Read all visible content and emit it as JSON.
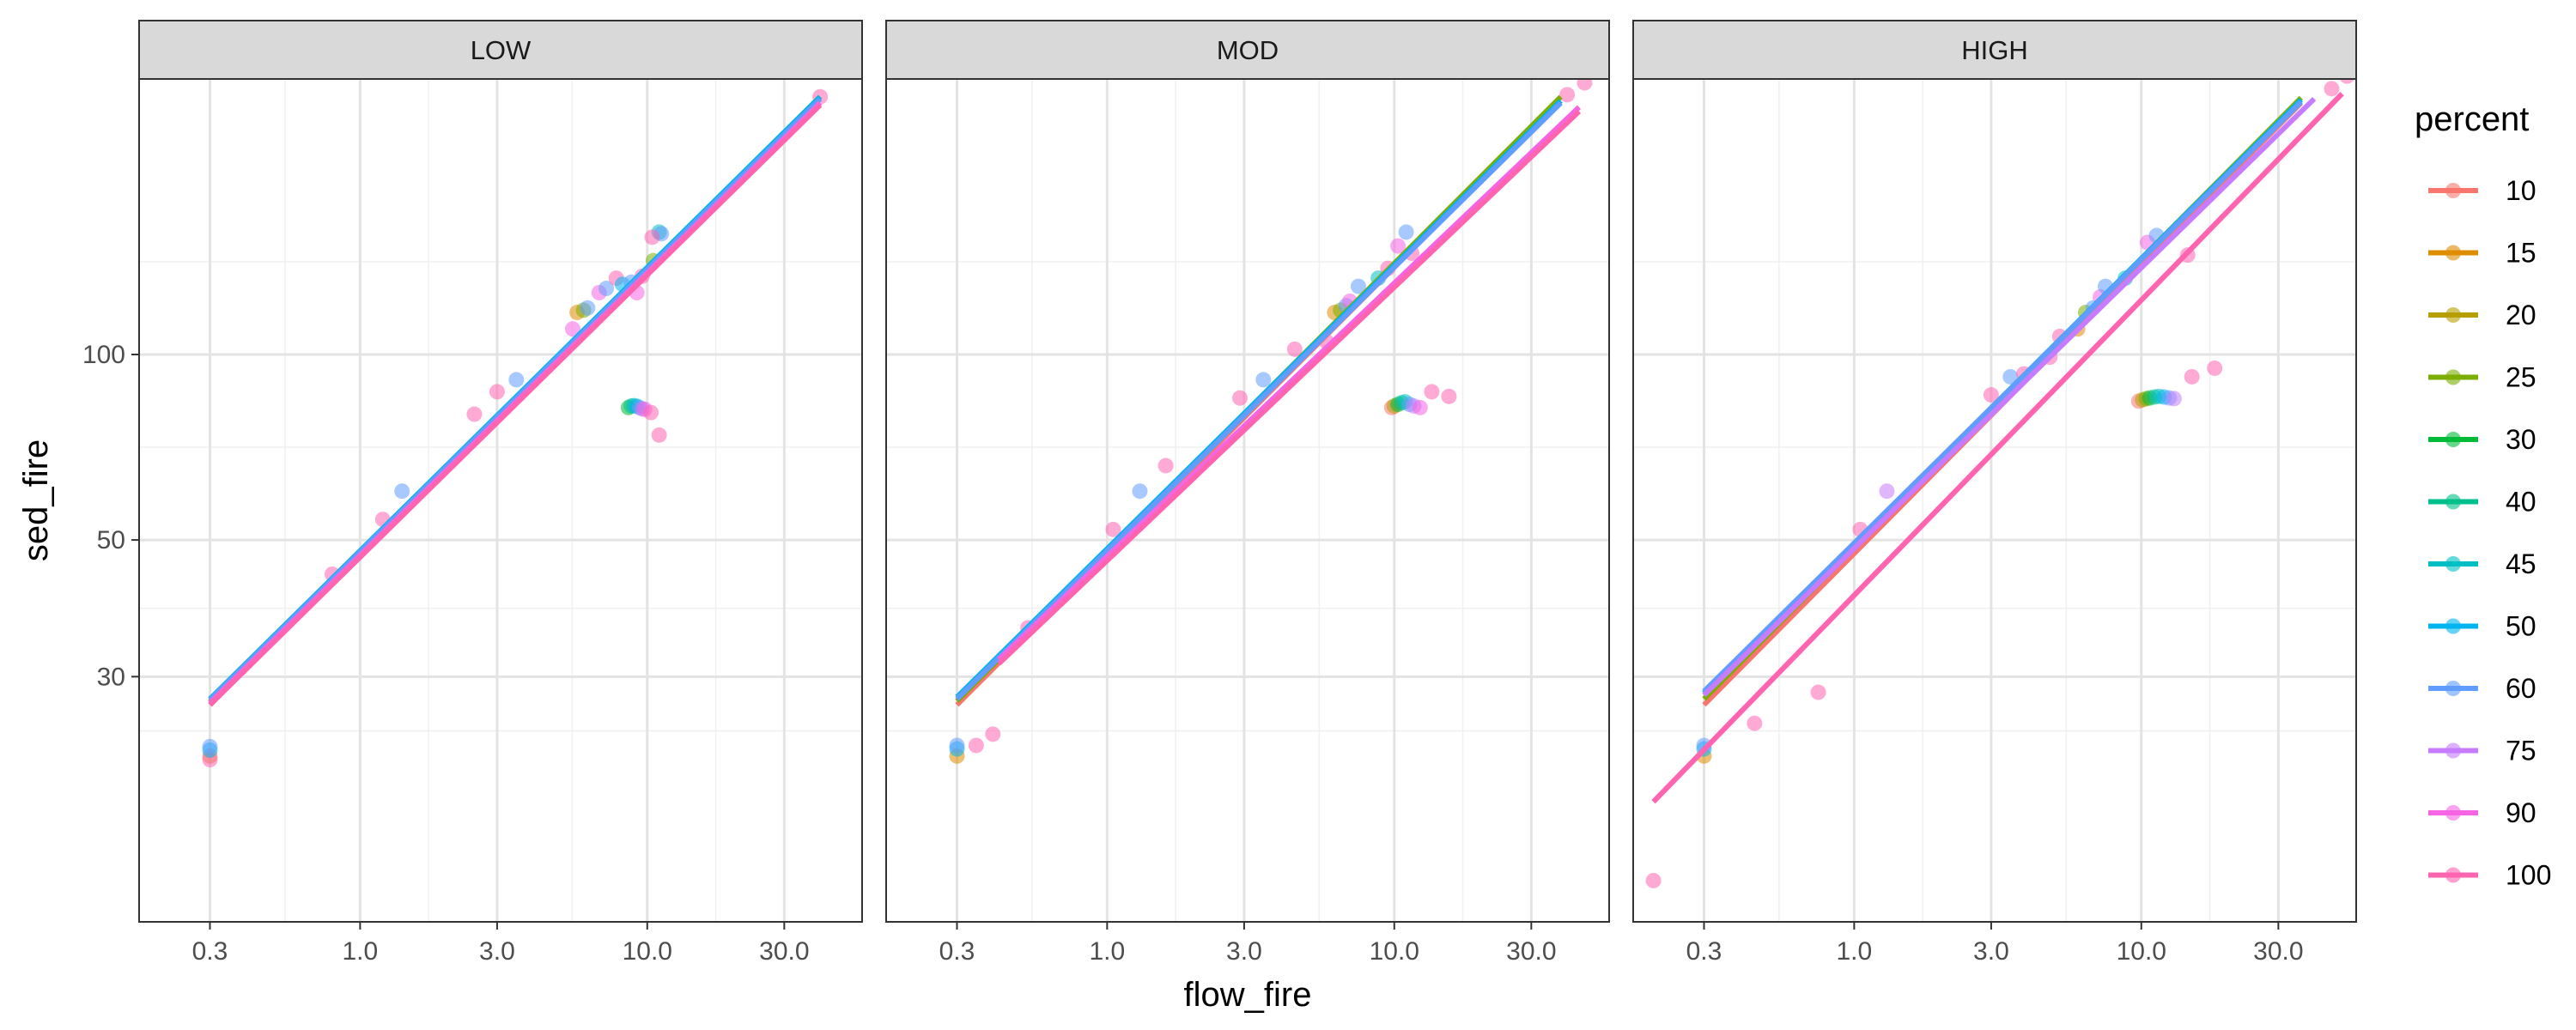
{
  "chart_data": {
    "type": "scatter",
    "xlabel": "flow_fire",
    "ylabel": "sed_fire",
    "x_scale": "log10",
    "y_scale": "log10",
    "xlim": [
      0.17,
      56
    ],
    "ylim": [
      12,
      280
    ],
    "x_ticks": [
      {
        "value": 0.3,
        "label": "0.3"
      },
      {
        "value": 1,
        "label": "1.0"
      },
      {
        "value": 3,
        "label": "3.0"
      },
      {
        "value": 10,
        "label": "10.0"
      },
      {
        "value": 30,
        "label": "30.0"
      }
    ],
    "y_ticks": [
      {
        "value": 30,
        "label": "30"
      },
      {
        "value": 50,
        "label": "50"
      },
      {
        "value": 100,
        "label": "100"
      }
    ],
    "grid": true,
    "legend": {
      "title": "percent",
      "position": "right",
      "entries": [
        {
          "label": "10",
          "color": "#F8766D"
        },
        {
          "label": "15",
          "color": "#DE8C00"
        },
        {
          "label": "20",
          "color": "#B79F00"
        },
        {
          "label": "25",
          "color": "#7CAE00"
        },
        {
          "label": "30",
          "color": "#00BA38"
        },
        {
          "label": "40",
          "color": "#00C08B"
        },
        {
          "label": "45",
          "color": "#00BFC4"
        },
        {
          "label": "50",
          "color": "#00B4F0"
        },
        {
          "label": "60",
          "color": "#619CFF"
        },
        {
          "label": "75",
          "color": "#C77CFF"
        },
        {
          "label": "90",
          "color": "#F564E3"
        },
        {
          "label": "100",
          "color": "#FF64B0"
        }
      ]
    },
    "panels": [
      {
        "label": "LOW",
        "lines": [
          {
            "color": "#F8766D",
            "x": [
              0.3,
              40
            ],
            "y": [
              27,
              260
            ]
          },
          {
            "color": "#7CAE00",
            "x": [
              0.3,
              40
            ],
            "y": [
              27.3,
              262
            ]
          },
          {
            "color": "#00B4F0",
            "x": [
              0.3,
              40
            ],
            "y": [
              27.6,
              262
            ]
          },
          {
            "color": "#619CFF",
            "x": [
              0.3,
              40
            ],
            "y": [
              27.5,
              260
            ]
          },
          {
            "color": "#F564E3",
            "x": [
              0.3,
              40
            ],
            "y": [
              27.2,
              256
            ]
          },
          {
            "color": "#FF64B0",
            "x": [
              0.3,
              40
            ],
            "y": [
              27,
              254
            ]
          }
        ],
        "points": [
          {
            "color": "#FF64B0",
            "x": 0.3,
            "y": 22
          },
          {
            "color": "#F8766D",
            "x": 0.3,
            "y": 22.3
          },
          {
            "color": "#00B4F0",
            "x": 0.3,
            "y": 22.8
          },
          {
            "color": "#619CFF",
            "x": 0.3,
            "y": 23.1
          },
          {
            "color": "#FF64B0",
            "x": 0.8,
            "y": 44
          },
          {
            "color": "#FF64B0",
            "x": 1.2,
            "y": 54
          },
          {
            "color": "#619CFF",
            "x": 1.4,
            "y": 60
          },
          {
            "color": "#FF64B0",
            "x": 2.5,
            "y": 80
          },
          {
            "color": "#FF64B0",
            "x": 3.0,
            "y": 87
          },
          {
            "color": "#619CFF",
            "x": 3.5,
            "y": 91
          },
          {
            "color": "#F564E3",
            "x": 5.5,
            "y": 110
          },
          {
            "color": "#DE8C00",
            "x": 5.7,
            "y": 117
          },
          {
            "color": "#7CAE00",
            "x": 6.0,
            "y": 118
          },
          {
            "color": "#619CFF",
            "x": 6.2,
            "y": 119
          },
          {
            "color": "#F564E3",
            "x": 6.8,
            "y": 126
          },
          {
            "color": "#619CFF",
            "x": 7.2,
            "y": 128
          },
          {
            "color": "#FF64B0",
            "x": 7.8,
            "y": 133
          },
          {
            "color": "#00B4F0",
            "x": 8.2,
            "y": 130
          },
          {
            "color": "#619CFF",
            "x": 8.8,
            "y": 131
          },
          {
            "color": "#F564E3",
            "x": 9.2,
            "y": 126
          },
          {
            "color": "#FF64B0",
            "x": 9.6,
            "y": 134
          },
          {
            "color": "#7CAE00",
            "x": 10.5,
            "y": 142
          },
          {
            "color": "#00BFC4",
            "x": 11.0,
            "y": 158
          },
          {
            "color": "#619CFF",
            "x": 11.2,
            "y": 157
          },
          {
            "color": "#FF64B0",
            "x": 10.4,
            "y": 155
          },
          {
            "color": "#00BA38",
            "x": 8.6,
            "y": 82
          },
          {
            "color": "#00C08B",
            "x": 8.8,
            "y": 82.5
          },
          {
            "color": "#00BFC4",
            "x": 9.0,
            "y": 82.6
          },
          {
            "color": "#00B4F0",
            "x": 9.2,
            "y": 82.4
          },
          {
            "color": "#619CFF",
            "x": 9.4,
            "y": 82
          },
          {
            "color": "#C77CFF",
            "x": 9.6,
            "y": 81.6
          },
          {
            "color": "#F564E3",
            "x": 9.8,
            "y": 81.5
          },
          {
            "color": "#FF64B0",
            "x": 10.3,
            "y": 80.5
          },
          {
            "color": "#FF64B0",
            "x": 11.0,
            "y": 74
          },
          {
            "color": "#FF64B0",
            "x": 40,
            "y": 262
          }
        ]
      },
      {
        "label": "MOD",
        "lines": [
          {
            "color": "#F8766D",
            "x": [
              0.3,
              38
            ],
            "y": [
              27,
              258
            ]
          },
          {
            "color": "#7CAE00",
            "x": [
              0.3,
              38
            ],
            "y": [
              27.4,
              262
            ]
          },
          {
            "color": "#00B4F0",
            "x": [
              0.3,
              38
            ],
            "y": [
              27.8,
              258
            ]
          },
          {
            "color": "#619CFF",
            "x": [
              0.3,
              38
            ],
            "y": [
              27.6,
              256
            ]
          },
          {
            "color": "#F564E3",
            "x": [
              0.42,
              44
            ],
            "y": [
              32,
              252
            ]
          },
          {
            "color": "#FF64B0",
            "x": [
              0.42,
              44
            ],
            "y": [
              31.5,
              248
            ]
          }
        ],
        "points": [
          {
            "color": "#DE8C00",
            "x": 0.3,
            "y": 22.3
          },
          {
            "color": "#00B4F0",
            "x": 0.3,
            "y": 22.9
          },
          {
            "color": "#619CFF",
            "x": 0.3,
            "y": 23.2
          },
          {
            "color": "#FF64B0",
            "x": 0.35,
            "y": 23.2
          },
          {
            "color": "#FF64B0",
            "x": 0.4,
            "y": 24.2
          },
          {
            "color": "#FF64B0",
            "x": 0.53,
            "y": 36
          },
          {
            "color": "#FF64B0",
            "x": 1.05,
            "y": 52
          },
          {
            "color": "#619CFF",
            "x": 1.3,
            "y": 60
          },
          {
            "color": "#FF64B0",
            "x": 1.6,
            "y": 66
          },
          {
            "color": "#FF64B0",
            "x": 2.9,
            "y": 85
          },
          {
            "color": "#619CFF",
            "x": 3.5,
            "y": 91
          },
          {
            "color": "#FF64B0",
            "x": 4.5,
            "y": 102
          },
          {
            "color": "#FF64B0",
            "x": 5.8,
            "y": 105
          },
          {
            "color": "#DE8C00",
            "x": 6.2,
            "y": 117
          },
          {
            "color": "#7CAE00",
            "x": 6.5,
            "y": 118
          },
          {
            "color": "#619CFF",
            "x": 6.8,
            "y": 120
          },
          {
            "color": "#F564E3",
            "x": 7.0,
            "y": 122
          },
          {
            "color": "#619CFF",
            "x": 7.5,
            "y": 129
          },
          {
            "color": "#00BFC4",
            "x": 8.8,
            "y": 133
          },
          {
            "color": "#FF64B0",
            "x": 9.5,
            "y": 138
          },
          {
            "color": "#F564E3",
            "x": 10.3,
            "y": 150
          },
          {
            "color": "#619CFF",
            "x": 11.0,
            "y": 158
          },
          {
            "color": "#FF64B0",
            "x": 11.5,
            "y": 146
          },
          {
            "color": "#F8766D",
            "x": 9.8,
            "y": 82
          },
          {
            "color": "#B79F00",
            "x": 10.0,
            "y": 82.5
          },
          {
            "color": "#00BA38",
            "x": 10.3,
            "y": 83
          },
          {
            "color": "#00C08B",
            "x": 10.6,
            "y": 83.5
          },
          {
            "color": "#00BFC4",
            "x": 10.9,
            "y": 83.8
          },
          {
            "color": "#619CFF",
            "x": 11.3,
            "y": 83
          },
          {
            "color": "#C77CFF",
            "x": 11.7,
            "y": 82.5
          },
          {
            "color": "#F564E3",
            "x": 12.3,
            "y": 82
          },
          {
            "color": "#FF64B0",
            "x": 13.5,
            "y": 87
          },
          {
            "color": "#FF64B0",
            "x": 15.5,
            "y": 85.5
          },
          {
            "color": "#FF64B0",
            "x": 40,
            "y": 264
          },
          {
            "color": "#FF64B0",
            "x": 46,
            "y": 276
          }
        ]
      },
      {
        "label": "HIGH",
        "lines": [
          {
            "color": "#F8766D",
            "x": [
              0.3,
              36
            ],
            "y": [
              27,
              256
            ]
          },
          {
            "color": "#7CAE00",
            "x": [
              0.3,
              36
            ],
            "y": [
              27.6,
              261
            ]
          },
          {
            "color": "#00B4F0",
            "x": [
              0.3,
              36
            ],
            "y": [
              28.2,
              259
            ]
          },
          {
            "color": "#619CFF",
            "x": [
              0.3,
              36
            ],
            "y": [
              28.4,
              257
            ]
          },
          {
            "color": "#C77CFF",
            "x": [
              0.3,
              40
            ],
            "y": [
              28,
              260
            ]
          },
          {
            "color": "#F564E3",
            "x": [
              0.2,
              50
            ],
            "y": [
              18.8,
              265
            ]
          },
          {
            "color": "#FF64B0",
            "x": [
              0.2,
              50
            ],
            "y": [
              18.8,
              265
            ]
          }
        ],
        "points": [
          {
            "color": "#FF64B0",
            "x": 0.2,
            "y": 14
          },
          {
            "color": "#DE8C00",
            "x": 0.3,
            "y": 22.3
          },
          {
            "color": "#00B4F0",
            "x": 0.3,
            "y": 22.9
          },
          {
            "color": "#619CFF",
            "x": 0.3,
            "y": 23.2
          },
          {
            "color": "#FF64B0",
            "x": 0.45,
            "y": 25.2
          },
          {
            "color": "#FF64B0",
            "x": 0.75,
            "y": 28.3
          },
          {
            "color": "#FF64B0",
            "x": 1.05,
            "y": 52
          },
          {
            "color": "#C77CFF",
            "x": 1.3,
            "y": 60
          },
          {
            "color": "#FF64B0",
            "x": 3.0,
            "y": 86
          },
          {
            "color": "#619CFF",
            "x": 3.5,
            "y": 92
          },
          {
            "color": "#FF64B0",
            "x": 3.9,
            "y": 93
          },
          {
            "color": "#FF64B0",
            "x": 4.8,
            "y": 99
          },
          {
            "color": "#FF64B0",
            "x": 5.2,
            "y": 107
          },
          {
            "color": "#DE8C00",
            "x": 6.0,
            "y": 110
          },
          {
            "color": "#7CAE00",
            "x": 6.4,
            "y": 117
          },
          {
            "color": "#619CFF",
            "x": 6.8,
            "y": 119
          },
          {
            "color": "#F564E3",
            "x": 7.2,
            "y": 124
          },
          {
            "color": "#619CFF",
            "x": 7.5,
            "y": 129
          },
          {
            "color": "#00BFC4",
            "x": 8.8,
            "y": 133
          },
          {
            "color": "#F564E3",
            "x": 10.5,
            "y": 152
          },
          {
            "color": "#619CFF",
            "x": 11.3,
            "y": 156
          },
          {
            "color": "#FF64B0",
            "x": 14.5,
            "y": 145
          },
          {
            "color": "#F8766D",
            "x": 9.8,
            "y": 84
          },
          {
            "color": "#B79F00",
            "x": 10.1,
            "y": 84.4
          },
          {
            "color": "#7CAE00",
            "x": 10.4,
            "y": 84.8
          },
          {
            "color": "#00BA38",
            "x": 10.7,
            "y": 85
          },
          {
            "color": "#00C08B",
            "x": 11.1,
            "y": 85.3
          },
          {
            "color": "#00BFC4",
            "x": 11.5,
            "y": 85.5
          },
          {
            "color": "#00B4F0",
            "x": 12.0,
            "y": 85.3
          },
          {
            "color": "#619CFF",
            "x": 12.5,
            "y": 85
          },
          {
            "color": "#C77CFF",
            "x": 13.0,
            "y": 84.8
          },
          {
            "color": "#FF64B0",
            "x": 15.0,
            "y": 92
          },
          {
            "color": "#FF64B0",
            "x": 18.0,
            "y": 95
          },
          {
            "color": "#FF64B0",
            "x": 46,
            "y": 270
          },
          {
            "color": "#FF64B0",
            "x": 52,
            "y": 283
          }
        ]
      }
    ]
  }
}
